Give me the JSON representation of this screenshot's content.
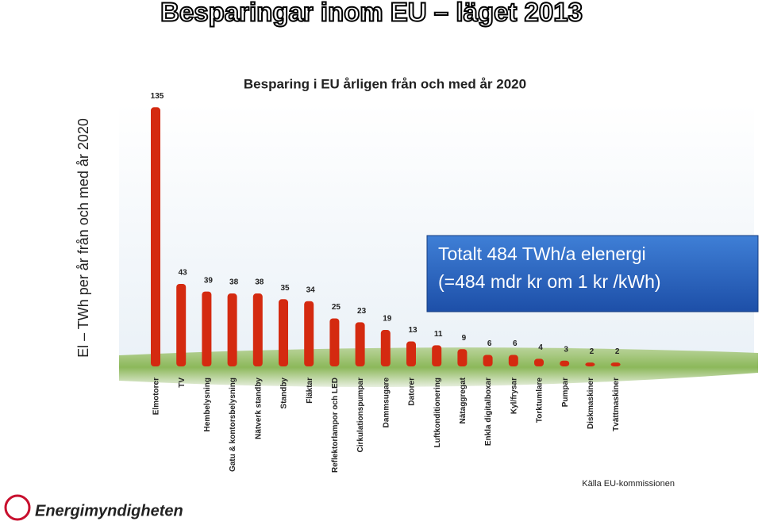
{
  "page_title": "Besparingar inom EU – läget 2013",
  "chart_data": {
    "type": "bar",
    "title": "Besparing i EU årligen från och med år 2020",
    "y_label": "El – TWh per år från och med år 2020",
    "categories": [
      "Elmotorer",
      "TV",
      "Hembelysning",
      "Gatu & kontorsbelysning",
      "Nätverk standby",
      "Standby",
      "Fläktar",
      "Reflektorlampor och LED",
      "Cirkulationspumpar",
      "Dammsugare",
      "Datorer",
      "Luftkonditionering",
      "Nätaggregat",
      "Enkla digitalboxar",
      "Kyl/frysar",
      "Torktumlare",
      "Pumpar",
      "Diskmaskiner",
      "Tvättmaskiner"
    ],
    "values": [
      135,
      43,
      39,
      38,
      38,
      35,
      34,
      25,
      23,
      19,
      13,
      11,
      9,
      6,
      6,
      4,
      3,
      2,
      2
    ],
    "color": "#d42a10",
    "annotations": [
      "Totalt 484 TWh/a elenergi",
      "(=484 mdr kr om 1 kr /kWh)"
    ]
  },
  "source": "Källa EU-kommissionen",
  "logo": "Energimyndigheten"
}
